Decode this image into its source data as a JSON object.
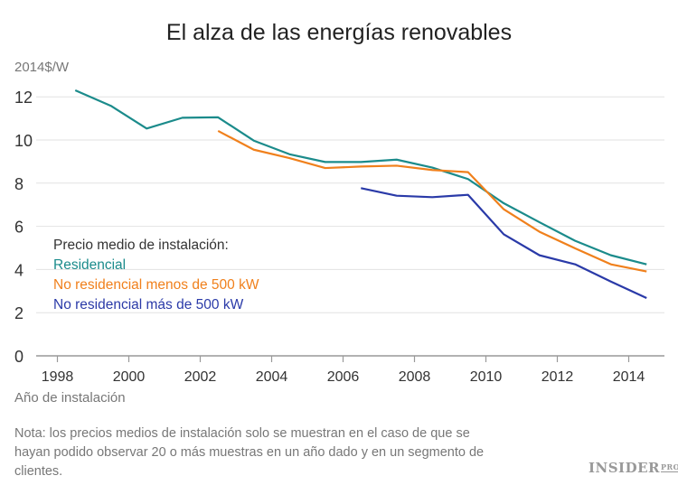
{
  "chart_data": {
    "type": "line",
    "title": "El alza de las energías renovables",
    "ylabel": "2014$/W",
    "xlabel": "Año de instalación",
    "xlim": [
      1998,
      2015
    ],
    "ylim": [
      0,
      12
    ],
    "x_ticks": [
      1998,
      2000,
      2002,
      2004,
      2006,
      2008,
      2010,
      2012,
      2014
    ],
    "y_ticks": [
      0,
      2,
      4,
      6,
      8,
      10,
      12
    ],
    "grid": "horizontal",
    "legend_title": "Precio medio de instalación:",
    "legend_placement": "lower-left",
    "series": [
      {
        "name": "Residencial",
        "color": "#1b8b8b",
        "x": [
          1998.5,
          1999.5,
          2000.5,
          2001.5,
          2002.5,
          2003.5,
          2004.5,
          2005.5,
          2006.5,
          2007.5,
          2008.5,
          2009.5,
          2010.5,
          2011.5,
          2012.5,
          2013.5,
          2014.5
        ],
        "y": [
          12.3,
          11.58,
          10.53,
          11.03,
          11.05,
          9.97,
          9.34,
          8.98,
          8.98,
          9.09,
          8.72,
          8.19,
          7.07,
          6.19,
          5.33,
          4.66,
          4.24
        ]
      },
      {
        "name": "No residencial menos de 500 kW",
        "color": "#f0801c",
        "x": [
          2002.5,
          2003.5,
          2004.5,
          2005.5,
          2006.5,
          2007.5,
          2008.5,
          2009.5,
          2010.5,
          2011.5,
          2012.5,
          2013.5,
          2014.5
        ],
        "y": [
          10.42,
          9.55,
          9.16,
          8.7,
          8.77,
          8.81,
          8.61,
          8.51,
          6.79,
          5.75,
          4.98,
          4.24,
          3.91
        ]
      },
      {
        "name": "No residencial más de 500 kW",
        "color": "#2a3aa8",
        "x": [
          2006.5,
          2007.5,
          2008.5,
          2009.5,
          2010.5,
          2011.5,
          2012.5,
          2013.5,
          2014.5
        ],
        "y": [
          7.77,
          7.42,
          7.35,
          7.46,
          5.63,
          4.66,
          4.24,
          3.44,
          2.68
        ]
      }
    ],
    "note": "Nota: los precios medios de instalación solo se muestran en el caso de que se hayan podido observar 20 o más muestras en un año dado y en un segmento de clientes."
  },
  "logo": {
    "text": "INSIDER",
    "sub": "PRO"
  }
}
